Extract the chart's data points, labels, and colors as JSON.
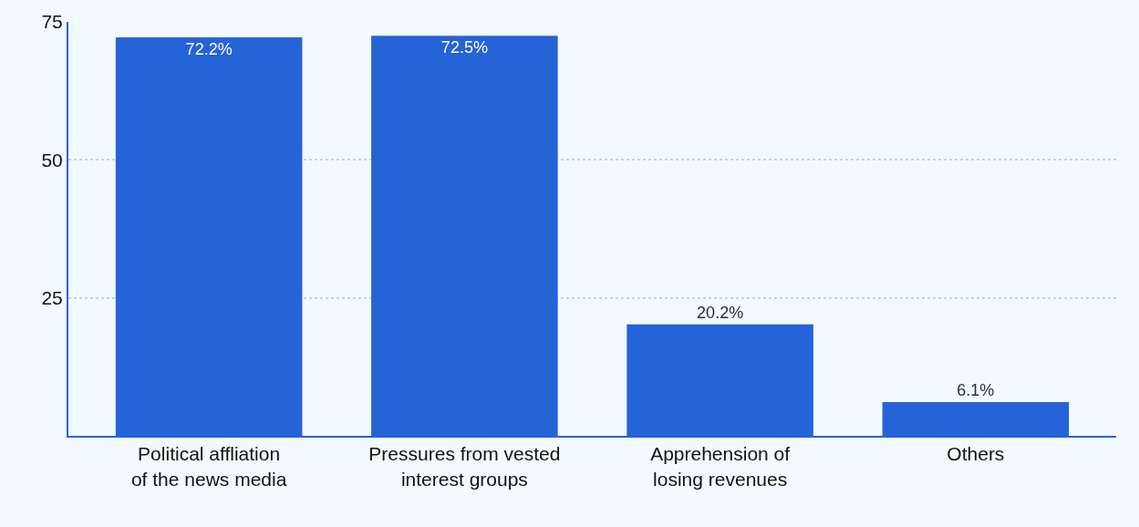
{
  "chart_data": {
    "type": "bar",
    "categories": [
      "Political affliation\nof the news media",
      "Pressures from vested\ninterest groups",
      "Apprehension of\nlosing revenues",
      "Others"
    ],
    "values": [
      72.2,
      72.5,
      20.2,
      6.1
    ],
    "value_labels": [
      "72.2%",
      "72.5%",
      "20.2%",
      "6.1%"
    ],
    "color": "#2563d9",
    "ylim": [
      0,
      75
    ],
    "yticks": [
      25,
      50,
      75
    ],
    "grid": "y"
  }
}
